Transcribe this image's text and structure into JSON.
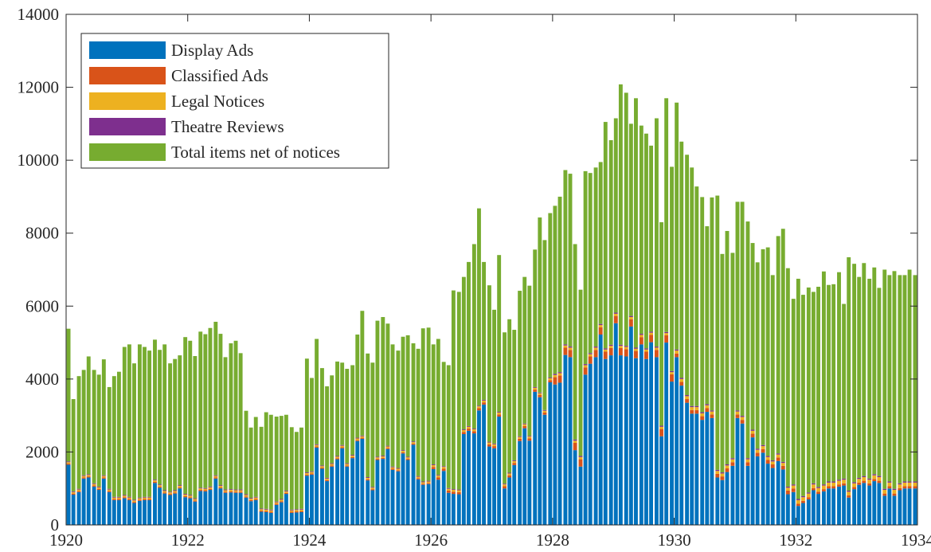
{
  "chart_data": {
    "type": "stacked-bar",
    "xlim": [
      1920,
      1934
    ],
    "xticks": [
      1920,
      1922,
      1924,
      1926,
      1928,
      1930,
      1932,
      1934
    ],
    "ylim": [
      0,
      14000
    ],
    "yticks": [
      0,
      2000,
      4000,
      6000,
      8000,
      10000,
      12000,
      14000
    ],
    "legend": "northwest",
    "x": [
      1920,
      1920.08,
      1920.17,
      1920.25,
      1920.33,
      1920.42,
      1920.5,
      1920.58,
      1920.67,
      1920.75,
      1920.83,
      1920.92,
      1921,
      1921.08,
      1921.17,
      1921.25,
      1921.33,
      1921.42,
      1921.5,
      1921.58,
      1921.67,
      1921.75,
      1921.83,
      1921.92,
      1922,
      1922.08,
      1922.17,
      1922.25,
      1922.33,
      1922.42,
      1922.5,
      1922.58,
      1922.67,
      1922.75,
      1922.83,
      1922.92,
      1923,
      1923.08,
      1923.17,
      1923.25,
      1923.33,
      1923.42,
      1923.5,
      1923.58,
      1923.67,
      1923.75,
      1923.83,
      1923.92,
      1924,
      1924.08,
      1924.17,
      1924.25,
      1924.33,
      1924.42,
      1924.5,
      1924.58,
      1924.67,
      1924.75,
      1924.83,
      1924.92,
      1925,
      1925.08,
      1925.17,
      1925.25,
      1925.33,
      1925.42,
      1925.5,
      1925.58,
      1925.67,
      1925.75,
      1925.83,
      1925.92,
      1926,
      1926.08,
      1926.17,
      1926.25,
      1926.33,
      1926.42,
      1926.5,
      1926.58,
      1926.67,
      1926.75,
      1926.83,
      1926.92,
      1927,
      1927.08,
      1927.17,
      1927.25,
      1927.33,
      1927.42,
      1927.5,
      1927.58,
      1927.67,
      1927.75,
      1927.83,
      1927.92,
      1928,
      1928.08,
      1928.17,
      1928.25,
      1928.33,
      1928.42,
      1928.5,
      1928.58,
      1928.67,
      1928.75,
      1928.83,
      1928.92,
      1929,
      1929.08,
      1929.17,
      1929.25,
      1929.33,
      1929.42,
      1929.5,
      1929.58,
      1929.67,
      1929.75,
      1929.83,
      1929.92,
      1930,
      1930.08,
      1930.17,
      1930.25,
      1930.33,
      1930.42,
      1930.5,
      1930.58,
      1930.67,
      1930.75,
      1930.83,
      1930.92,
      1931,
      1931.08,
      1931.17,
      1931.25,
      1931.33,
      1931.42,
      1931.5,
      1931.58,
      1931.67,
      1931.75,
      1931.83,
      1931.92,
      1932,
      1932.08,
      1932.17,
      1932.25,
      1932.33,
      1932.42,
      1932.5,
      1932.58,
      1932.67,
      1932.75,
      1932.83,
      1932.92,
      1933,
      1933.08,
      1933.17,
      1933.25,
      1933.33,
      1933.42,
      1933.5,
      1933.58,
      1933.67,
      1933.75,
      1933.83,
      1933.92
    ],
    "series": [
      {
        "name": "Display Ads",
        "color": "#0072BD",
        "values": [
          1650,
          830,
          900,
          1270,
          1300,
          1050,
          960,
          1270,
          900,
          680,
          680,
          730,
          680,
          600,
          660,
          680,
          680,
          1150,
          1020,
          860,
          820,
          860,
          1000,
          760,
          730,
          640,
          930,
          920,
          960,
          1270,
          1000,
          880,
          890,
          880,
          880,
          750,
          650,
          680,
          360,
          350,
          330,
          550,
          620,
          850,
          330,
          340,
          350,
          1350,
          1380,
          2120,
          1540,
          1200,
          1600,
          1800,
          2100,
          1600,
          1830,
          2300,
          2360,
          1220,
          950,
          1780,
          1810,
          2080,
          1510,
          1470,
          1960,
          1780,
          2200,
          1250,
          1100,
          1120,
          1530,
          1240,
          1480,
          880,
          850,
          840,
          2490,
          2580,
          2510,
          3140,
          3300,
          2150,
          2100,
          2970,
          1000,
          1300,
          1640,
          2300,
          2650,
          2310,
          3650,
          3500,
          3020,
          3910,
          3850,
          3900,
          4660,
          4600,
          2050,
          1600,
          4120,
          4420,
          4600,
          5220,
          4550,
          4650,
          5530,
          4650,
          4620,
          5440,
          4570,
          4950,
          4550,
          5010,
          4600,
          2430,
          5000,
          3930,
          4600,
          3820,
          3350,
          3050,
          3050,
          2880,
          3100,
          2930,
          1300,
          1230,
          1450,
          1620,
          2930,
          2780,
          1620,
          2400,
          1880,
          1980,
          1680,
          1560,
          1750,
          1520,
          840,
          900,
          520,
          600,
          700,
          950,
          850,
          920,
          1000,
          1000,
          1050,
          1080,
          750,
          980,
          1100,
          1150,
          1080,
          1200,
          1150,
          800,
          1000,
          800,
          950,
          1000,
          1000,
          1000
        ]
      },
      {
        "name": "Classified Ads",
        "color": "#D95319",
        "values": [
          30,
          30,
          30,
          30,
          30,
          30,
          30,
          30,
          30,
          30,
          30,
          30,
          30,
          30,
          30,
          30,
          30,
          30,
          30,
          30,
          30,
          30,
          30,
          30,
          30,
          30,
          30,
          30,
          30,
          30,
          30,
          30,
          30,
          30,
          30,
          30,
          30,
          30,
          30,
          30,
          30,
          30,
          30,
          30,
          30,
          30,
          30,
          30,
          30,
          30,
          30,
          30,
          30,
          30,
          30,
          30,
          30,
          30,
          30,
          30,
          30,
          30,
          30,
          30,
          30,
          30,
          30,
          30,
          30,
          30,
          30,
          30,
          60,
          60,
          60,
          60,
          60,
          60,
          60,
          60,
          60,
          60,
          60,
          60,
          60,
          60,
          60,
          60,
          60,
          60,
          60,
          60,
          60,
          60,
          60,
          60,
          200,
          200,
          200,
          200,
          200,
          200,
          200,
          200,
          200,
          200,
          200,
          200,
          200,
          200,
          200,
          200,
          200,
          200,
          200,
          200,
          200,
          200,
          200,
          200,
          100,
          100,
          100,
          100,
          100,
          100,
          100,
          100,
          100,
          100,
          100,
          100,
          100,
          100,
          100,
          100,
          100,
          100,
          100,
          100,
          100,
          100,
          100,
          100,
          60,
          60,
          60,
          60,
          60,
          60,
          60,
          60,
          60,
          60,
          60,
          60,
          60,
          60,
          60,
          60,
          60,
          60,
          60,
          60,
          60,
          60,
          60,
          60
        ]
      },
      {
        "name": "Legal Notices",
        "color": "#EDB120",
        "values": [
          40,
          40,
          40,
          40,
          40,
          40,
          40,
          40,
          40,
          40,
          40,
          40,
          40,
          40,
          40,
          40,
          40,
          40,
          40,
          40,
          40,
          40,
          40,
          40,
          40,
          40,
          40,
          40,
          40,
          40,
          40,
          40,
          40,
          40,
          40,
          40,
          40,
          40,
          40,
          40,
          40,
          40,
          40,
          40,
          40,
          40,
          40,
          40,
          40,
          40,
          40,
          40,
          40,
          40,
          40,
          40,
          40,
          40,
          40,
          40,
          40,
          40,
          40,
          40,
          40,
          40,
          40,
          40,
          40,
          40,
          40,
          40,
          50,
          50,
          50,
          50,
          50,
          50,
          50,
          50,
          50,
          50,
          50,
          50,
          50,
          50,
          50,
          50,
          50,
          50,
          50,
          50,
          50,
          50,
          50,
          50,
          60,
          60,
          60,
          60,
          60,
          60,
          60,
          60,
          60,
          60,
          60,
          60,
          60,
          60,
          60,
          60,
          60,
          60,
          60,
          60,
          60,
          60,
          60,
          60,
          80,
          80,
          80,
          80,
          80,
          80,
          80,
          80,
          80,
          80,
          80,
          80,
          80,
          80,
          80,
          80,
          80,
          80,
          80,
          80,
          80,
          80,
          80,
          80,
          100,
          100,
          100,
          100,
          100,
          100,
          100,
          100,
          100,
          100,
          100,
          100,
          100,
          100,
          100,
          100,
          100,
          100,
          100,
          100,
          100,
          100,
          100,
          100
        ]
      },
      {
        "name": "Theatre Reviews",
        "color": "#7E2F8E",
        "values": [
          20,
          20,
          20,
          20,
          20,
          20,
          20,
          20,
          20,
          20,
          20,
          20,
          20,
          20,
          20,
          20,
          20,
          20,
          20,
          20,
          20,
          20,
          20,
          20,
          20,
          20,
          20,
          20,
          20,
          20,
          20,
          20,
          20,
          20,
          20,
          20,
          20,
          20,
          20,
          20,
          20,
          20,
          20,
          20,
          20,
          20,
          20,
          20,
          20,
          20,
          20,
          20,
          20,
          20,
          20,
          20,
          20,
          20,
          20,
          20,
          20,
          20,
          20,
          20,
          20,
          20,
          20,
          20,
          20,
          20,
          20,
          20,
          20,
          20,
          20,
          20,
          20,
          20,
          20,
          20,
          20,
          20,
          20,
          20,
          20,
          20,
          20,
          20,
          20,
          20,
          20,
          20,
          20,
          20,
          20,
          20,
          30,
          30,
          30,
          30,
          30,
          30,
          30,
          30,
          30,
          30,
          30,
          30,
          30,
          30,
          30,
          30,
          30,
          30,
          30,
          30,
          30,
          30,
          30,
          30,
          30,
          30,
          30,
          30,
          30,
          30,
          30,
          30,
          30,
          30,
          30,
          30,
          30,
          30,
          30,
          30,
          30,
          30,
          30,
          30,
          30,
          30,
          30,
          30,
          30,
          30,
          30,
          30,
          30,
          30,
          30,
          30,
          30,
          30,
          30,
          30,
          30,
          30,
          30,
          30,
          30,
          30,
          30,
          30,
          30,
          30,
          30,
          30
        ]
      },
      {
        "name": "Total items net of notices",
        "color": "#77AC30",
        "values": [
          3640,
          2530,
          3090,
          2890,
          3230,
          3110,
          3070,
          3180,
          2790,
          3310,
          3430,
          4060,
          4180,
          3740,
          4200,
          4110,
          4010,
          3840,
          3690,
          4000,
          3520,
          3600,
          3560,
          4300,
          4230,
          3900,
          4280,
          4220,
          4350,
          4210,
          4150,
          3630,
          4000,
          4080,
          3740,
          2290,
          1930,
          2190,
          2240,
          2650,
          2600,
          2330,
          2280,
          2080,
          2260,
          2120,
          2230,
          3120,
          2560,
          2890,
          2670,
          2510,
          2410,
          2590,
          2260,
          2590,
          2460,
          2830,
          3420,
          3390,
          3410,
          3730,
          3800,
          3350,
          3350,
          3220,
          3110,
          3330,
          2690,
          3490,
          4200,
          4200,
          3290,
          3730,
          2860,
          3370,
          5450,
          5420,
          4180,
          4500,
          5060,
          5410,
          3780,
          4290,
          3670,
          4300,
          4150,
          4210,
          3580,
          3990,
          4020,
          4120,
          3770,
          4800,
          4660,
          4510,
          4610,
          4810,
          4780,
          4740,
          5360,
          4560,
          5290,
          4940,
          4910,
          4440,
          6210,
          5610,
          5330,
          7140,
          6940,
          5270,
          6840,
          5710,
          5890,
          5100,
          6260,
          5580,
          6410,
          5600,
          6770,
          6480,
          6590,
          6540,
          6020,
          5900,
          4880,
          5840,
          7520,
          5990,
          6400,
          5630,
          5720,
          5870,
          6490,
          5120,
          5110,
          5370,
          5720,
          5080,
          5960,
          6390,
          5990,
          5090,
          6040,
          5520,
          5620,
          5250,
          5490,
          5840,
          5390,
          5410,
          5690,
          4790,
          6400,
          5990,
          5510,
          5840,
          5480,
          5670,
          5160,
          6010,
          5660,
          5970,
          5710,
          5660,
          5810,
          5660
        ]
      }
    ]
  }
}
